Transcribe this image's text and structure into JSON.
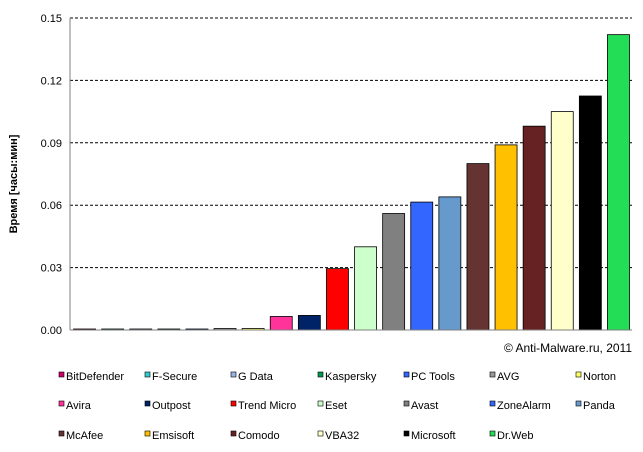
{
  "chart_data": {
    "type": "bar",
    "ylabel": "Время [часы:мин]",
    "ylim": [
      0,
      0.15
    ],
    "yticks": [
      "0.00",
      "0.03",
      "0.06",
      "0.09",
      "0.12",
      "0.15"
    ],
    "grid": "horizontal-dashed",
    "legend_position": "bottom",
    "annotation": "© Anti-Malware.ru,  2011",
    "categories": [
      "BitDefender",
      "F-Secure",
      "G Data",
      "Kaspersky",
      "PC Tools",
      "AVG",
      "Norton",
      "Avira",
      "Outpost",
      "Trend Micro",
      "Eset",
      "Avast",
      "ZoneAlarm",
      "Panda",
      "McAfee",
      "Emsisoft",
      "Comodo",
      "VBA32",
      "Microsoft",
      "Dr.Web"
    ],
    "values": [
      0.0003,
      0.0003,
      0.0003,
      0.0003,
      0.0003,
      0.0007,
      0.0007,
      0.0065,
      0.007,
      0.0295,
      0.04,
      0.056,
      0.0615,
      0.064,
      0.08,
      0.089,
      0.098,
      0.105,
      0.1125,
      0.142
    ],
    "colors": [
      "#cc0066",
      "#33cccc",
      "#99b3e6",
      "#00994d",
      "#3366ff",
      "#999999",
      "#ffff66",
      "#ff3399",
      "#002266",
      "#ff0000",
      "#ccffcc",
      "#808080",
      "#3366ff",
      "#6699cc",
      "#663333",
      "#ffc000",
      "#662222",
      "#ffffcc",
      "#000000",
      "#22dd55"
    ]
  }
}
